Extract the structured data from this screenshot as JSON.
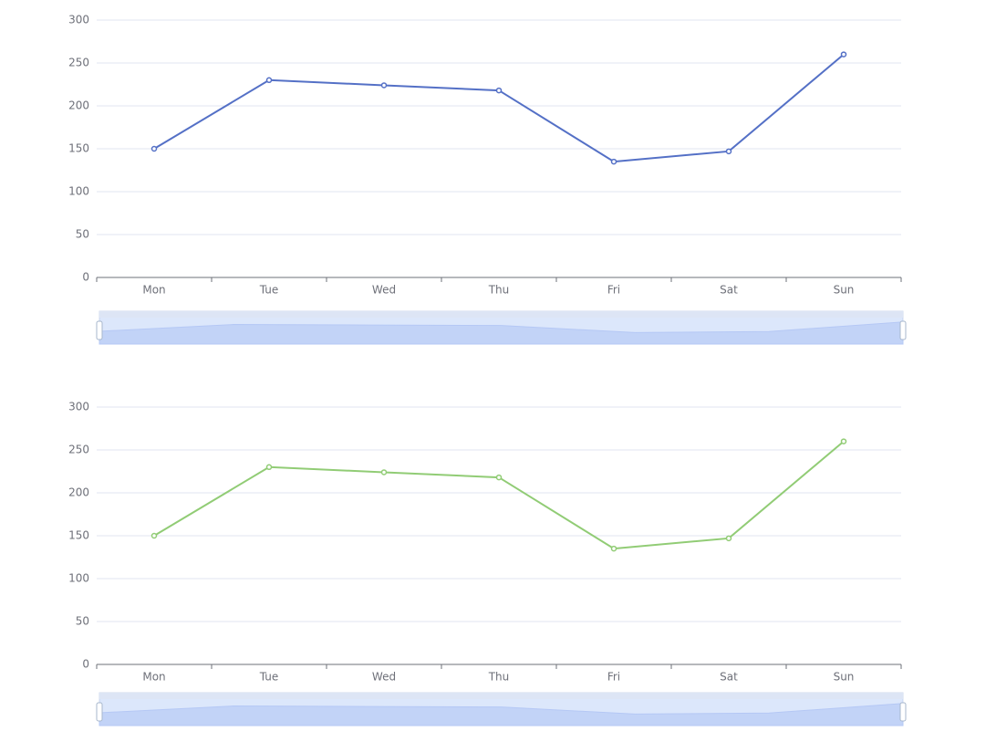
{
  "chart_data": [
    {
      "type": "line",
      "categories": [
        "Mon",
        "Tue",
        "Wed",
        "Thu",
        "Fri",
        "Sat",
        "Sun"
      ],
      "values": [
        150,
        230,
        224,
        218,
        135,
        147,
        260
      ],
      "color": "#5470c6",
      "ylim": [
        0,
        300
      ],
      "yticks": [
        0,
        50,
        100,
        150,
        200,
        250,
        300
      ],
      "grid": true
    },
    {
      "type": "line",
      "categories": [
        "Mon",
        "Tue",
        "Wed",
        "Thu",
        "Fri",
        "Sat",
        "Sun"
      ],
      "values": [
        150,
        230,
        224,
        218,
        135,
        147,
        260
      ],
      "color": "#91cc75",
      "ylim": [
        0,
        300
      ],
      "yticks": [
        0,
        50,
        100,
        150,
        200,
        250,
        300
      ],
      "grid": true
    }
  ]
}
